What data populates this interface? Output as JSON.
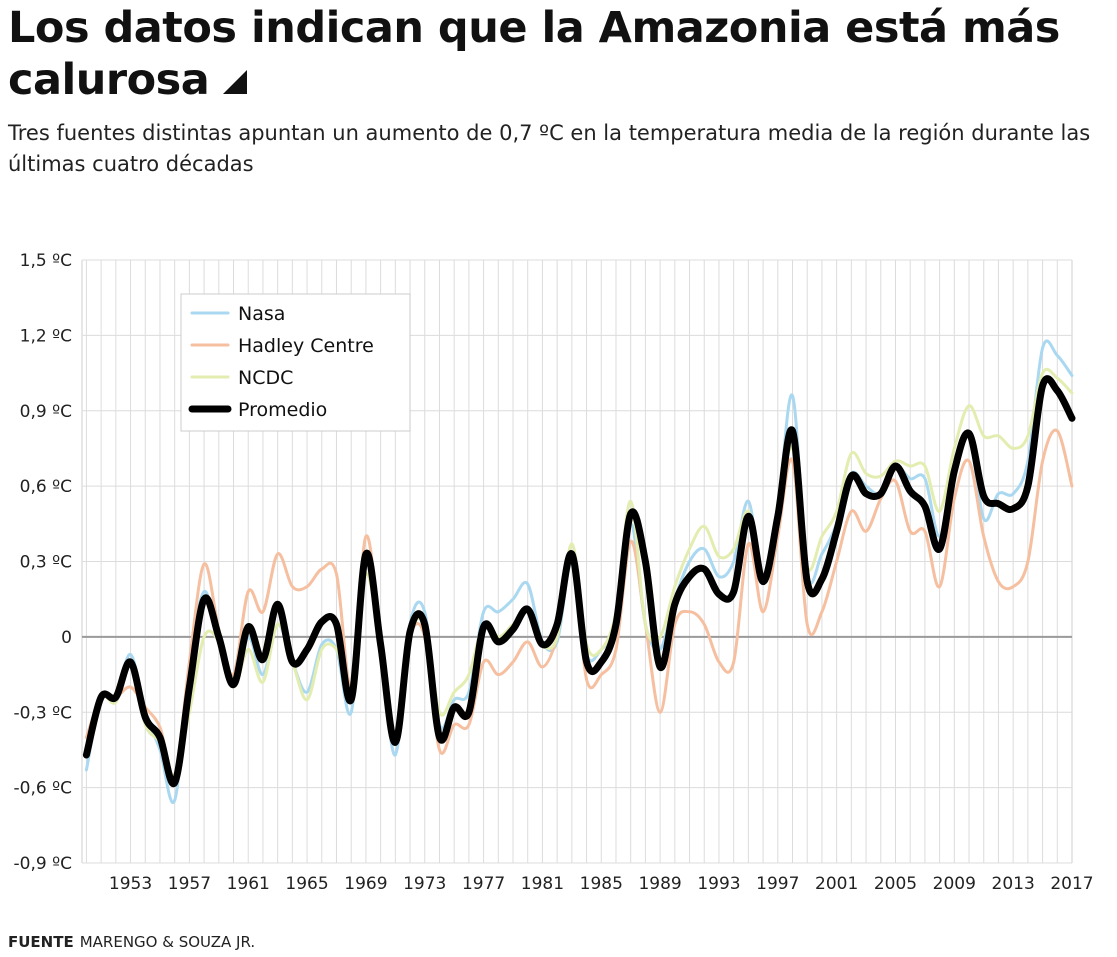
{
  "header": {
    "title": "Los datos indican que la Amazonia está más calurosa",
    "subtitle": "Tres fuentes distintas apuntan un aumento de 0,7 ºC en la temperatura media de la región durante las últimas cuatro décadas"
  },
  "footer": {
    "source_label": "FUENTE",
    "source_text": "MARENGO & SOUZA JR."
  },
  "chart_data": {
    "type": "line",
    "ylim": [
      -0.9,
      1.5
    ],
    "y_ticks": [
      1.5,
      1.2,
      0.9,
      0.6,
      0.3,
      0,
      -0.3,
      -0.6,
      -0.9
    ],
    "y_tick_labels": [
      "1,5 ºC",
      "1,2 ºC",
      "0,9 ºC",
      "0,6 ºC",
      "0,3 ºC",
      "0",
      "-0,3 ºC",
      "-0,6 ºC",
      "-0,9 ºC"
    ],
    "xlim": [
      1949.7,
      2017
    ],
    "x_tick_labels": [
      "1953",
      "1957",
      "1961",
      "1965",
      "1969",
      "1973",
      "1977",
      "1981",
      "1985",
      "1989",
      "1993",
      "1997",
      "2001",
      "2005",
      "2009",
      "2013",
      "2017"
    ],
    "x_ticks": [
      1953,
      1957,
      1961,
      1965,
      1969,
      1973,
      1977,
      1981,
      1985,
      1989,
      1993,
      1997,
      2001,
      2005,
      2009,
      2013,
      2017
    ],
    "grid": true,
    "legend_position": "top-left",
    "x": [
      1950,
      1951,
      1952,
      1953,
      1954,
      1955,
      1956,
      1957,
      1958,
      1959,
      1960,
      1961,
      1962,
      1963,
      1964,
      1965,
      1966,
      1967,
      1968,
      1969,
      1970,
      1971,
      1972,
      1973,
      1974,
      1975,
      1976,
      1977,
      1978,
      1979,
      1980,
      1981,
      1982,
      1983,
      1984,
      1985,
      1986,
      1987,
      1988,
      1989,
      1990,
      1991,
      1992,
      1993,
      1994,
      1995,
      1996,
      1997,
      1998,
      1999,
      2000,
      2001,
      2002,
      2003,
      2004,
      2005,
      2006,
      2007,
      2008,
      2009,
      2010,
      2011,
      2012,
      2013,
      2014,
      2015,
      2016,
      2017
    ],
    "series": [
      {
        "name": "Nasa",
        "color": "#a9d8f0",
        "width": 3,
        "values": [
          -0.53,
          -0.24,
          -0.24,
          -0.07,
          -0.3,
          -0.45,
          -0.65,
          -0.12,
          0.18,
          -0.02,
          -0.2,
          0.0,
          -0.15,
          0.05,
          -0.1,
          -0.22,
          -0.03,
          -0.05,
          -0.3,
          0.3,
          -0.05,
          -0.47,
          0.05,
          0.1,
          -0.35,
          -0.25,
          -0.22,
          0.1,
          0.1,
          0.15,
          0.21,
          -0.02,
          -0.02,
          0.3,
          -0.07,
          -0.05,
          0.05,
          0.45,
          0.05,
          -0.05,
          0.15,
          0.3,
          0.35,
          0.24,
          0.3,
          0.54,
          0.22,
          0.5,
          0.96,
          0.25,
          0.33,
          0.45,
          0.65,
          0.6,
          0.57,
          0.68,
          0.63,
          0.63,
          0.4,
          0.65,
          0.8,
          0.47,
          0.57,
          0.57,
          0.7,
          1.15,
          1.12,
          1.04
        ]
      },
      {
        "name": "Hadley Centre",
        "color": "#f5bfa0",
        "width": 3,
        "values": [
          -0.4,
          -0.24,
          -0.24,
          -0.2,
          -0.28,
          -0.36,
          -0.55,
          -0.1,
          0.29,
          0.03,
          -0.15,
          0.18,
          0.1,
          0.33,
          0.2,
          0.2,
          0.27,
          0.25,
          -0.2,
          0.4,
          0.0,
          -0.4,
          0.0,
          0.0,
          -0.45,
          -0.35,
          -0.35,
          -0.1,
          -0.15,
          -0.1,
          -0.02,
          -0.12,
          0.0,
          0.3,
          -0.17,
          -0.15,
          -0.05,
          0.38,
          0.05,
          -0.3,
          0.05,
          0.1,
          0.05,
          -0.1,
          -0.1,
          0.37,
          0.1,
          0.4,
          0.7,
          0.05,
          0.1,
          0.3,
          0.5,
          0.42,
          0.55,
          0.62,
          0.42,
          0.42,
          0.2,
          0.55,
          0.7,
          0.4,
          0.22,
          0.2,
          0.3,
          0.7,
          0.82,
          0.6
        ]
      },
      {
        "name": "NCDC",
        "color": "#e3edb0",
        "width": 3,
        "values": [
          -0.45,
          -0.24,
          -0.26,
          -0.1,
          -0.35,
          -0.42,
          -0.55,
          -0.3,
          0.0,
          -0.02,
          -0.2,
          -0.05,
          -0.18,
          0.05,
          -0.1,
          -0.25,
          -0.05,
          -0.05,
          -0.2,
          0.25,
          -0.05,
          -0.4,
          0.0,
          0.05,
          -0.3,
          -0.22,
          -0.15,
          0.05,
          0.0,
          0.05,
          0.1,
          -0.03,
          0.0,
          0.37,
          -0.03,
          -0.05,
          0.1,
          0.54,
          0.05,
          0.0,
          0.2,
          0.35,
          0.44,
          0.32,
          0.35,
          0.5,
          0.25,
          0.5,
          0.75,
          0.28,
          0.4,
          0.5,
          0.73,
          0.65,
          0.64,
          0.7,
          0.68,
          0.68,
          0.5,
          0.75,
          0.92,
          0.8,
          0.8,
          0.75,
          0.8,
          1.05,
          1.03,
          0.97
        ]
      },
      {
        "name": "Promedio",
        "color": "#000000",
        "width": 7,
        "values": [
          -0.47,
          -0.24,
          -0.24,
          -0.1,
          -0.32,
          -0.4,
          -0.58,
          -0.2,
          0.15,
          0.0,
          -0.19,
          0.04,
          -0.09,
          0.13,
          -0.1,
          -0.05,
          0.06,
          0.05,
          -0.25,
          0.33,
          -0.03,
          -0.42,
          0.02,
          0.05,
          -0.4,
          -0.28,
          -0.3,
          0.04,
          -0.02,
          0.03,
          0.11,
          -0.03,
          0.05,
          0.33,
          -0.1,
          -0.1,
          0.05,
          0.49,
          0.3,
          -0.12,
          0.13,
          0.24,
          0.27,
          0.17,
          0.18,
          0.48,
          0.22,
          0.48,
          0.82,
          0.22,
          0.23,
          0.42,
          0.64,
          0.57,
          0.57,
          0.68,
          0.58,
          0.52,
          0.35,
          0.66,
          0.81,
          0.56,
          0.53,
          0.51,
          0.6,
          1.0,
          0.98,
          0.87
        ]
      }
    ]
  }
}
